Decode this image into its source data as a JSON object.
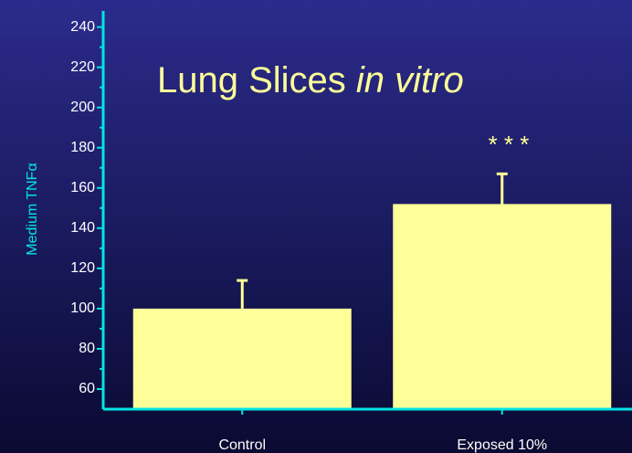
{
  "chart_data": {
    "type": "bar",
    "title": "Lung Slices ",
    "title_italic": "in vitro",
    "y_label": "Medium TNFα",
    "annotation": "* * *",
    "categories": [
      "Control",
      "Exposed 10%"
    ],
    "values": [
      100,
      152
    ],
    "errors": [
      14,
      15
    ],
    "color": "#ffff99",
    "axis_color": "#00e5e5",
    "ylim": [
      50,
      248
    ],
    "yticks": [
      60,
      80,
      100,
      120,
      140,
      160,
      180,
      200,
      220,
      240
    ]
  }
}
